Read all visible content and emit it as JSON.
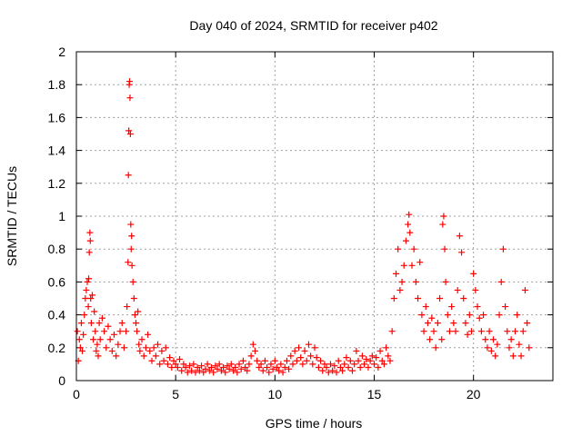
{
  "chart_data": {
    "type": "scatter",
    "title": "Day 040 of 2024, SRMTID for receiver p402",
    "xlabel": "GPS time / hours",
    "ylabel": "SRMTID / TECUs",
    "xlim": [
      0,
      24
    ],
    "ylim": [
      0,
      2
    ],
    "x_ticks": [
      0,
      5,
      10,
      15,
      20
    ],
    "x_tick_labels": [
      "0",
      "5",
      "10",
      "15",
      "20"
    ],
    "y_ticks": [
      0,
      0.2,
      0.4,
      0.6,
      0.8,
      1,
      1.2,
      1.4,
      1.6,
      1.8,
      2
    ],
    "y_tick_labels": [
      "0",
      "0.2",
      "0.4",
      "0.6",
      "0.8",
      "1",
      "1.2",
      "1.4",
      "1.6",
      "1.8",
      "2"
    ],
    "grid": true,
    "marker": "+",
    "color": "#ff0000",
    "series": [
      {
        "name": "SRMTID",
        "points": [
          [
            0.05,
            0.3
          ],
          [
            0.1,
            0.12
          ],
          [
            0.15,
            0.25
          ],
          [
            0.2,
            0.2
          ],
          [
            0.25,
            0.35
          ],
          [
            0.3,
            0.18
          ],
          [
            0.35,
            0.28
          ],
          [
            0.4,
            0.4
          ],
          [
            0.45,
            0.5
          ],
          [
            0.5,
            0.55
          ],
          [
            0.55,
            0.6
          ],
          [
            0.6,
            0.45
          ],
          [
            0.62,
            0.62
          ],
          [
            0.65,
            0.78
          ],
          [
            0.68,
            0.9
          ],
          [
            0.7,
            0.85
          ],
          [
            0.72,
            0.5
          ],
          [
            0.75,
            0.35
          ],
          [
            0.8,
            0.52
          ],
          [
            0.85,
            0.25
          ],
          [
            0.9,
            0.42
          ],
          [
            0.95,
            0.3
          ],
          [
            1.0,
            0.18
          ],
          [
            1.05,
            0.22
          ],
          [
            1.1,
            0.15
          ],
          [
            1.15,
            0.35
          ],
          [
            1.2,
            0.25
          ],
          [
            1.3,
            0.38
          ],
          [
            1.4,
            0.3
          ],
          [
            1.5,
            0.2
          ],
          [
            1.6,
            0.33
          ],
          [
            1.7,
            0.25
          ],
          [
            1.8,
            0.18
          ],
          [
            1.9,
            0.28
          ],
          [
            2.0,
            0.15
          ],
          [
            2.1,
            0.22
          ],
          [
            2.2,
            0.3
          ],
          [
            2.3,
            0.35
          ],
          [
            2.4,
            0.2
          ],
          [
            2.5,
            0.3
          ],
          [
            2.55,
            0.45
          ],
          [
            2.6,
            0.72
          ],
          [
            2.62,
            1.25
          ],
          [
            2.64,
            1.52
          ],
          [
            2.66,
            1.8
          ],
          [
            2.68,
            1.82
          ],
          [
            2.7,
            1.72
          ],
          [
            2.72,
            1.5
          ],
          [
            2.74,
            0.95
          ],
          [
            2.76,
            0.8
          ],
          [
            2.78,
            0.88
          ],
          [
            2.8,
            0.7
          ],
          [
            2.85,
            0.6
          ],
          [
            2.9,
            0.5
          ],
          [
            2.95,
            0.4
          ],
          [
            3.0,
            0.35
          ],
          [
            3.05,
            0.3
          ],
          [
            3.1,
            0.42
          ],
          [
            3.15,
            0.22
          ],
          [
            3.2,
            0.18
          ],
          [
            3.3,
            0.25
          ],
          [
            3.4,
            0.15
          ],
          [
            3.5,
            0.2
          ],
          [
            3.6,
            0.28
          ],
          [
            3.7,
            0.18
          ],
          [
            3.8,
            0.12
          ],
          [
            3.9,
            0.2
          ],
          [
            4.0,
            0.15
          ],
          [
            4.1,
            0.22
          ],
          [
            4.2,
            0.1
          ],
          [
            4.3,
            0.18
          ],
          [
            4.4,
            0.12
          ],
          [
            4.5,
            0.2
          ],
          [
            4.6,
            0.1
          ],
          [
            4.7,
            0.14
          ],
          [
            4.8,
            0.08
          ],
          [
            4.9,
            0.12
          ],
          [
            5.0,
            0.1
          ],
          [
            5.1,
            0.08
          ],
          [
            5.2,
            0.13
          ],
          [
            5.3,
            0.06
          ],
          [
            5.4,
            0.1
          ],
          [
            5.5,
            0.08
          ],
          [
            5.6,
            0.05
          ],
          [
            5.7,
            0.09
          ],
          [
            5.8,
            0.06
          ],
          [
            5.9,
            0.1
          ],
          [
            6.0,
            0.05
          ],
          [
            6.1,
            0.08
          ],
          [
            6.2,
            0.06
          ],
          [
            6.3,
            0.09
          ],
          [
            6.4,
            0.05
          ],
          [
            6.5,
            0.07
          ],
          [
            6.6,
            0.1
          ],
          [
            6.7,
            0.06
          ],
          [
            6.8,
            0.08
          ],
          [
            6.9,
            0.05
          ],
          [
            7.0,
            0.09
          ],
          [
            7.1,
            0.07
          ],
          [
            7.2,
            0.1
          ],
          [
            7.3,
            0.06
          ],
          [
            7.4,
            0.08
          ],
          [
            7.5,
            0.05
          ],
          [
            7.6,
            0.09
          ],
          [
            7.7,
            0.07
          ],
          [
            7.8,
            0.1
          ],
          [
            7.9,
            0.06
          ],
          [
            8.0,
            0.08
          ],
          [
            8.1,
            0.05
          ],
          [
            8.2,
            0.1
          ],
          [
            8.3,
            0.07
          ],
          [
            8.4,
            0.12
          ],
          [
            8.5,
            0.08
          ],
          [
            8.6,
            0.06
          ],
          [
            8.7,
            0.1
          ],
          [
            8.8,
            0.15
          ],
          [
            8.9,
            0.22
          ],
          [
            9.0,
            0.18
          ],
          [
            9.1,
            0.12
          ],
          [
            9.2,
            0.08
          ],
          [
            9.3,
            0.1
          ],
          [
            9.4,
            0.06
          ],
          [
            9.5,
            0.12
          ],
          [
            9.6,
            0.08
          ],
          [
            9.7,
            0.05
          ],
          [
            9.8,
            0.1
          ],
          [
            9.9,
            0.07
          ],
          [
            10.0,
            0.12
          ],
          [
            10.1,
            0.08
          ],
          [
            10.2,
            0.06
          ],
          [
            10.3,
            0.1
          ],
          [
            10.4,
            0.05
          ],
          [
            10.5,
            0.08
          ],
          [
            10.6,
            0.12
          ],
          [
            10.7,
            0.07
          ],
          [
            10.8,
            0.15
          ],
          [
            10.9,
            0.1
          ],
          [
            11.0,
            0.18
          ],
          [
            11.1,
            0.12
          ],
          [
            11.2,
            0.2
          ],
          [
            11.3,
            0.14
          ],
          [
            11.4,
            0.1
          ],
          [
            11.5,
            0.18
          ],
          [
            11.6,
            0.12
          ],
          [
            11.7,
            0.22
          ],
          [
            11.8,
            0.15
          ],
          [
            11.9,
            0.1
          ],
          [
            12.0,
            0.2
          ],
          [
            12.1,
            0.14
          ],
          [
            12.2,
            0.08
          ],
          [
            12.3,
            0.12
          ],
          [
            12.4,
            0.06
          ],
          [
            12.5,
            0.1
          ],
          [
            12.6,
            0.08
          ],
          [
            12.7,
            0.05
          ],
          [
            12.8,
            0.1
          ],
          [
            12.9,
            0.06
          ],
          [
            13.0,
            0.09
          ],
          [
            13.1,
            0.05
          ],
          [
            13.2,
            0.12
          ],
          [
            13.3,
            0.08
          ],
          [
            13.4,
            0.06
          ],
          [
            13.5,
            0.1
          ],
          [
            13.6,
            0.14
          ],
          [
            13.7,
            0.08
          ],
          [
            13.8,
            0.12
          ],
          [
            13.9,
            0.06
          ],
          [
            14.0,
            0.1
          ],
          [
            14.1,
            0.18
          ],
          [
            14.2,
            0.12
          ],
          [
            14.3,
            0.08
          ],
          [
            14.4,
            0.15
          ],
          [
            14.5,
            0.1
          ],
          [
            14.6,
            0.13
          ],
          [
            14.7,
            0.08
          ],
          [
            14.8,
            0.12
          ],
          [
            14.9,
            0.15
          ],
          [
            15.0,
            0.1
          ],
          [
            15.1,
            0.14
          ],
          [
            15.2,
            0.08
          ],
          [
            15.3,
            0.18
          ],
          [
            15.4,
            0.12
          ],
          [
            15.5,
            0.1
          ],
          [
            15.6,
            0.2
          ],
          [
            15.7,
            0.15
          ],
          [
            15.8,
            0.12
          ],
          [
            15.9,
            0.3
          ],
          [
            16.0,
            0.5
          ],
          [
            16.1,
            0.65
          ],
          [
            16.2,
            0.8
          ],
          [
            16.3,
            0.55
          ],
          [
            16.4,
            0.6
          ],
          [
            16.5,
            0.7
          ],
          [
            16.6,
            0.85
          ],
          [
            16.7,
            0.95
          ],
          [
            16.75,
            1.01
          ],
          [
            16.8,
            0.9
          ],
          [
            16.9,
            0.7
          ],
          [
            17.0,
            0.8
          ],
          [
            17.1,
            0.6
          ],
          [
            17.2,
            0.5
          ],
          [
            17.3,
            0.72
          ],
          [
            17.4,
            0.4
          ],
          [
            17.5,
            0.3
          ],
          [
            17.6,
            0.45
          ],
          [
            17.7,
            0.35
          ],
          [
            17.8,
            0.25
          ],
          [
            17.9,
            0.38
          ],
          [
            18.0,
            0.3
          ],
          [
            18.1,
            0.2
          ],
          [
            18.2,
            0.35
          ],
          [
            18.3,
            0.5
          ],
          [
            18.4,
            0.25
          ],
          [
            18.45,
            0.95
          ],
          [
            18.5,
            1.0
          ],
          [
            18.55,
            0.8
          ],
          [
            18.6,
            0.6
          ],
          [
            18.7,
            0.4
          ],
          [
            18.8,
            0.3
          ],
          [
            18.9,
            0.45
          ],
          [
            19.0,
            0.35
          ],
          [
            19.1,
            0.3
          ],
          [
            19.2,
            0.55
          ],
          [
            19.3,
            0.88
          ],
          [
            19.4,
            0.78
          ],
          [
            19.5,
            0.5
          ],
          [
            19.6,
            0.35
          ],
          [
            19.7,
            0.28
          ],
          [
            19.8,
            0.4
          ],
          [
            19.9,
            0.3
          ],
          [
            20.0,
            0.65
          ],
          [
            20.1,
            0.55
          ],
          [
            20.2,
            0.45
          ],
          [
            20.3,
            0.38
          ],
          [
            20.4,
            0.3
          ],
          [
            20.5,
            0.4
          ],
          [
            20.6,
            0.25
          ],
          [
            20.7,
            0.2
          ],
          [
            20.8,
            0.3
          ],
          [
            20.9,
            0.18
          ],
          [
            21.0,
            0.25
          ],
          [
            21.1,
            0.15
          ],
          [
            21.2,
            0.22
          ],
          [
            21.3,
            0.4
          ],
          [
            21.4,
            0.6
          ],
          [
            21.5,
            0.8
          ],
          [
            21.6,
            0.45
          ],
          [
            21.7,
            0.3
          ],
          [
            21.8,
            0.2
          ],
          [
            21.9,
            0.25
          ],
          [
            22.0,
            0.15
          ],
          [
            22.1,
            0.3
          ],
          [
            22.2,
            0.4
          ],
          [
            22.3,
            0.22
          ],
          [
            22.4,
            0.15
          ],
          [
            22.5,
            0.3
          ],
          [
            22.6,
            0.55
          ],
          [
            22.7,
            0.35
          ],
          [
            22.8,
            0.2
          ]
        ]
      }
    ]
  }
}
